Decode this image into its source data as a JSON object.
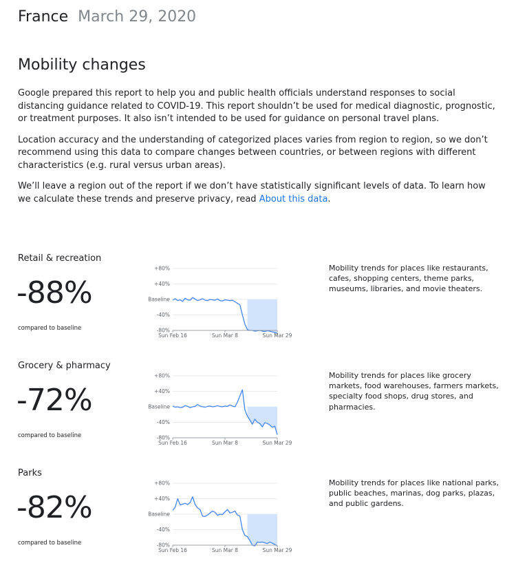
{
  "header": {
    "country": "France",
    "date": "March 29, 2020"
  },
  "section_title": "Mobility changes",
  "intro": {
    "p1": "Google prepared this report to help you and public health officials understand responses to social distancing guidance related to COVID-19. This report shouldn’t be used for medical diagnostic, prognostic, or treatment purposes. It also isn’t intended to be used for guidance on personal travel plans.",
    "p2": "Location accuracy and the understanding of categorized places varies from region to region, so we don’t recommend using this data to compare changes between countries, or between regions with different characteristics (e.g. rural versus urban areas).",
    "p3_before": "We’ll leave a region out of the report if we don’t have statistically significant levels of data. To learn how we calculate these trends and preserve privacy, read ",
    "p3_link": "About this data",
    "p3_after": "."
  },
  "compared_label": "compared to baseline",
  "colors": {
    "line": "#4285f4",
    "fill": "#d2e3fc",
    "grid": "#e8eaed",
    "link": "#1a73e8"
  },
  "categories": [
    {
      "name": "Retail & recreation",
      "value": "-88%",
      "description": "Mobility trends for places like restaurants, cafes, shopping centers, theme parks, museums, libraries, and movie theaters."
    },
    {
      "name": "Grocery & pharmacy",
      "value": "-72%",
      "description": "Mobility trends for places like grocery markets, food warehouses, farmers markets, specialty food shops, drug stores, and pharmacies."
    },
    {
      "name": "Parks",
      "value": "-82%",
      "description": "Mobility trends for places like national parks, public beaches, marinas, dog parks, plazas, and public gardens."
    }
  ],
  "chart_data": [
    {
      "type": "line",
      "title": "Retail & recreation",
      "x_tick_labels": [
        "Sun Feb 16",
        "Sun Mar 8",
        "Sun Mar 29"
      ],
      "y_tick_labels": [
        "+80%",
        "+40%",
        "Baseline",
        "-40%",
        "-80%"
      ],
      "ylim": [
        -80,
        80
      ],
      "x_start": "2020-02-16",
      "x_end": "2020-03-29",
      "shaded_from": "2020-03-17",
      "series": [
        {
          "values": [
            -2,
            2,
            -3,
            -1,
            -5,
            3,
            -1,
            -2,
            5,
            1,
            -3,
            -1,
            2,
            -2,
            -3,
            0,
            -1,
            -2,
            1,
            -3,
            -4,
            -1,
            -2,
            -3,
            -2,
            -6,
            -10,
            -14,
            -40,
            -64,
            -78,
            -80,
            -80,
            -82,
            -81,
            -80,
            -82,
            -83,
            -81,
            -82,
            -84,
            -85,
            -88
          ]
        }
      ]
    },
    {
      "type": "line",
      "title": "Grocery & pharmacy",
      "x_tick_labels": [
        "Sun Feb 16",
        "Sun Mar 8",
        "Sun Mar 29"
      ],
      "y_tick_labels": [
        "+80%",
        "+40%",
        "Baseline",
        "-40%",
        "-80%"
      ],
      "ylim": [
        -80,
        80
      ],
      "x_start": "2020-02-16",
      "x_end": "2020-03-29",
      "shaded_from": "2020-03-17",
      "series": [
        {
          "values": [
            2,
            -1,
            0,
            -2,
            -1,
            3,
            1,
            -2,
            0,
            1,
            6,
            2,
            0,
            -1,
            1,
            2,
            0,
            1,
            3,
            1,
            0,
            2,
            1,
            5,
            2,
            0,
            12,
            28,
            44,
            -8,
            -24,
            -34,
            -45,
            -32,
            -40,
            -43,
            -52,
            -41,
            -43,
            -47,
            -53,
            -50,
            -72
          ]
        }
      ]
    },
    {
      "type": "line",
      "title": "Parks",
      "x_tick_labels": [
        "Sun Feb 16",
        "Sun Mar 8",
        "Sun Mar 29"
      ],
      "y_tick_labels": [
        "+80%",
        "+40%",
        "Baseline",
        "-40%",
        "-80%"
      ],
      "ylim": [
        -80,
        80
      ],
      "x_start": "2020-02-16",
      "x_end": "2020-03-29",
      "shaded_from": "2020-03-17",
      "series": [
        {
          "values": [
            10,
            18,
            40,
            24,
            26,
            28,
            25,
            30,
            45,
            25,
            16,
            12,
            -5,
            -6,
            -2,
            3,
            8,
            5,
            -3,
            0,
            -1,
            6,
            12,
            3,
            5,
            8,
            -2,
            -5,
            -40,
            -55,
            -58,
            -68,
            -80,
            -82,
            -72,
            -73,
            -72,
            -74,
            -76,
            -72,
            -75,
            -78,
            -82
          ]
        }
      ]
    }
  ]
}
